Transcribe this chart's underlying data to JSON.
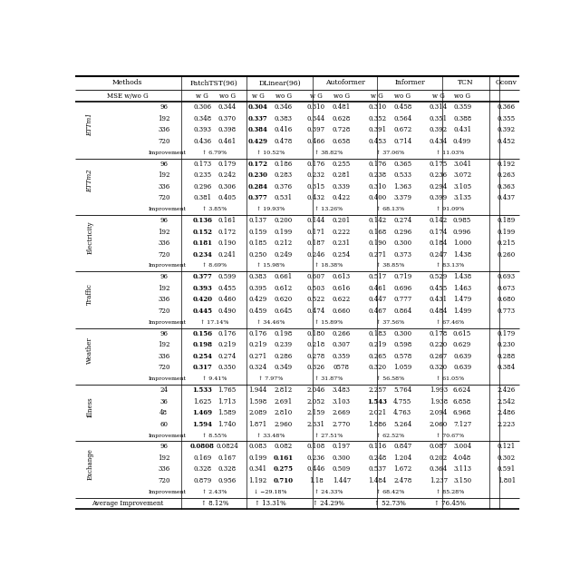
{
  "sections": [
    {
      "name": "ETTm1",
      "rows": [
        [
          "96",
          "0.306",
          "0.344",
          "0.304",
          "0.346",
          "0.310",
          "0.481",
          "0.310",
          "0.458",
          "0.314",
          "0.359",
          "0.366"
        ],
        [
          "192",
          "0.348",
          "0.370",
          "0.337",
          "0.383",
          "0.344",
          "0.628",
          "0.352",
          "0.564",
          "0.351",
          "0.388",
          "0.355"
        ],
        [
          "336",
          "0.393",
          "0.398",
          "0.384",
          "0.416",
          "0.397",
          "0.728",
          "0.391",
          "0.672",
          "0.392",
          "0.431",
          "0.392"
        ],
        [
          "720",
          "0.436",
          "0.461",
          "0.429",
          "0.478",
          "0.466",
          "0.658",
          "0.453",
          "0.714",
          "0.434",
          "0.499",
          "0.452"
        ]
      ],
      "improvement": [
        "↑ 6.79%",
        "↑ 10.52%",
        "↑ 38.82%",
        "↑ 37.06%",
        "↑ 11.03%"
      ],
      "bold": [
        [
          2
        ],
        [
          2
        ],
        [
          2
        ],
        [
          2
        ]
      ]
    },
    {
      "name": "ETTm2",
      "rows": [
        [
          "96",
          "0.173",
          "0.179",
          "0.172",
          "0.186",
          "0.176",
          "0.255",
          "0.176",
          "0.365",
          "0.175",
          "3.041",
          "0.192"
        ],
        [
          "192",
          "0.235",
          "0.242",
          "0.230",
          "0.283",
          "0.232",
          "0.281",
          "0.238",
          "0.533",
          "0.236",
          "3.072",
          "0.263"
        ],
        [
          "336",
          "0.296",
          "0.306",
          "0.284",
          "0.376",
          "0.315",
          "0.339",
          "0.310",
          "1.363",
          "0.294",
          "3.105",
          "0.363"
        ],
        [
          "720",
          "0.381",
          "0.405",
          "0.377",
          "0.531",
          "0.432",
          "0.422",
          "0.400",
          "3.379",
          "0.399",
          "3.135",
          "0.437"
        ]
      ],
      "improvement": [
        "↑ 3.85%",
        "↑ 19.93%",
        "↑ 13.26%",
        "↑ 68.13%",
        "↑ 91.09%"
      ],
      "bold": [
        [
          2
        ],
        [
          2
        ],
        [
          2
        ],
        [
          2
        ]
      ]
    },
    {
      "name": "Electricity",
      "rows": [
        [
          "96",
          "0.136",
          "0.161",
          "0.137",
          "0.200",
          "0.144",
          "0.201",
          "0.142",
          "0.274",
          "0.142",
          "0.985",
          "0.189"
        ],
        [
          "192",
          "0.152",
          "0.172",
          "0.159",
          "0.199",
          "0.171",
          "0.222",
          "0.168",
          "0.296",
          "0.174",
          "0.996",
          "0.199"
        ],
        [
          "336",
          "0.181",
          "0.190",
          "0.185",
          "0.212",
          "0.187",
          "0.231",
          "0.190",
          "0.300",
          "0.184",
          "1.000",
          "0.215"
        ],
        [
          "720",
          "0.234",
          "0.241",
          "0.250",
          "0.249",
          "0.246",
          "0.254",
          "0.271",
          "0.373",
          "0.247",
          "1.438",
          "0.260"
        ]
      ],
      "improvement": [
        "↑ 8.69%",
        "↑ 15.98%",
        "↑ 18.38%",
        "↑ 38.85%",
        "↑ 83.13%"
      ],
      "bold": [
        [
          0
        ],
        [
          0
        ],
        [
          0
        ],
        [
          0
        ]
      ]
    },
    {
      "name": "Traffic",
      "rows": [
        [
          "96",
          "0.377",
          "0.599",
          "0.383",
          "0.661",
          "0.607",
          "0.613",
          "0.517",
          "0.719",
          "0.529",
          "1.438",
          "0.693"
        ],
        [
          "192",
          "0.393",
          "0.455",
          "0.395",
          "0.612",
          "0.503",
          "0.616",
          "0.461",
          "0.696",
          "0.455",
          "1.463",
          "0.673"
        ],
        [
          "336",
          "0.420",
          "0.460",
          "0.429",
          "0.620",
          "0.522",
          "0.622",
          "0.447",
          "0.777",
          "0.431",
          "1.479",
          "0.680"
        ],
        [
          "720",
          "0.445",
          "0.490",
          "0.459",
          "0.645",
          "0.474",
          "0.660",
          "0.467",
          "0.864",
          "0.484",
          "1.499",
          "0.773"
        ]
      ],
      "improvement": [
        "↑ 17.14%",
        "↑ 34.46%",
        "↑ 15.89%",
        "↑ 37.56%",
        "↑ 67.46%"
      ],
      "bold": [
        [
          0
        ],
        [
          0
        ],
        [
          0
        ],
        [
          0
        ]
      ]
    },
    {
      "name": "Weather",
      "rows": [
        [
          "96",
          "0.156",
          "0.176",
          "0.176",
          "0.198",
          "0.180",
          "0.266",
          "0.183",
          "0.300",
          "0.178",
          "0.615",
          "0.179"
        ],
        [
          "192",
          "0.198",
          "0.219",
          "0.219",
          "0.239",
          "0.218",
          "0.307",
          "0.219",
          "0.598",
          "0.220",
          "0.629",
          "0.230"
        ],
        [
          "336",
          "0.254",
          "0.274",
          "0.271",
          "0.286",
          "0.278",
          "0.359",
          "0.265",
          "0.578",
          "0.267",
          "0.639",
          "0.288"
        ],
        [
          "720",
          "0.317",
          "0.350",
          "0.324",
          "0.349",
          "0.326",
          "0578",
          "0.320",
          "1.059",
          "0.320",
          "0.639",
          "0.384"
        ]
      ],
      "improvement": [
        "↑ 9.41%",
        "↑ 7.97%",
        "↑ 31.87%",
        "↑ 56.58%",
        "↑ 61.05%"
      ],
      "bold": [
        [
          0
        ],
        [
          0
        ],
        [
          0
        ],
        [
          0
        ]
      ]
    },
    {
      "name": "Illness",
      "rows": [
        [
          "24",
          "1.533",
          "1.765",
          "1.944",
          "2.812",
          "2.046",
          "3.483",
          "2.257",
          "5.764",
          "1.993",
          "6.624",
          "2.426"
        ],
        [
          "36",
          "1.625",
          "1.713",
          "1.598",
          "2.691",
          "2.052",
          "3.103",
          "1.543",
          "4.755",
          "1.938",
          "6.858",
          "2.542"
        ],
        [
          "48",
          "1.469",
          "1.589",
          "2.089",
          "2.810",
          "2.159",
          "2.669",
          "2.021",
          "4.763",
          "2.094",
          "6.968",
          "2.486"
        ],
        [
          "60",
          "1.594",
          "1.740",
          "1.871",
          "2.960",
          "2.331",
          "2.770",
          "1.886",
          "5.264",
          "2.060",
          "7.127",
          "2.223"
        ]
      ],
      "improvement": [
        "↑ 8.55%",
        "↑ 33.48%",
        "↑ 27.51%",
        "↑ 62.52%",
        "↑ 70.67%"
      ],
      "bold": [
        [
          0
        ],
        [
          6
        ],
        [
          0
        ],
        [
          0
        ]
      ]
    },
    {
      "name": "Exchange",
      "rows": [
        [
          "96",
          "0.0808",
          "0.0824",
          "0.083",
          "0.082",
          "0.108",
          "0.197",
          "0.116",
          "0.847",
          "0.087",
          "3.004",
          "0.121"
        ],
        [
          "192",
          "0.169",
          "0.167",
          "0.199",
          "0.161",
          "0.236",
          "0.300",
          "0.248",
          "1.204",
          "0.202",
          "4.048",
          "0.302"
        ],
        [
          "336",
          "0.328",
          "0.328",
          "0.341",
          "0.275",
          "0.446",
          "0.509",
          "0.537",
          "1.672",
          "0.364",
          "3.113",
          "0.591"
        ],
        [
          "720",
          "0.879",
          "0.956",
          "1.192",
          "0.710",
          "1.18",
          "1.447",
          "1.484",
          "2.478",
          "1.237",
          "3.150",
          "1.801"
        ]
      ],
      "improvement": [
        "↑ 2.43%",
        "↓ −29.18%",
        "↑ 24.33%",
        "↑ 68.42%",
        "↑ 85.28%"
      ],
      "bold": [
        [
          0
        ],
        [
          3
        ],
        [
          3
        ],
        [
          3
        ]
      ]
    }
  ],
  "average_improvement": [
    "↑ 8.12%",
    "↑ 13.31%",
    "↑ 24.29%",
    "↑ 52.73%",
    "↑ 76.45%"
  ]
}
